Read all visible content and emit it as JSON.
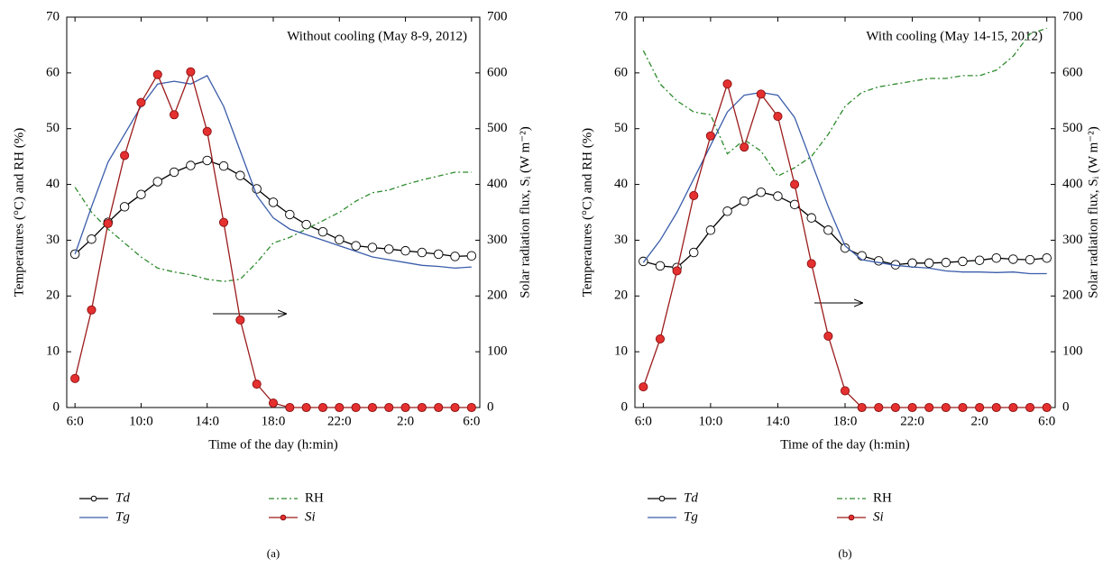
{
  "chart_data": [
    {
      "type": "line",
      "annotation": "Without cooling (May 8-9, 2012)",
      "caption": "(a)",
      "xlabel": "Time of the day (h:min)",
      "ylabel": "Temperatures (°C) and RH (%)",
      "y2label": "Solar radiation flux, Sᵢ (W m⁻²)",
      "xlim": [
        5.5,
        30.5
      ],
      "xticks": [
        {
          "value": 6,
          "label": "6:0"
        },
        {
          "value": 10,
          "label": "10:0"
        },
        {
          "value": 14,
          "label": "14:0"
        },
        {
          "value": 18,
          "label": "18:0"
        },
        {
          "value": 22,
          "label": "22:0"
        },
        {
          "value": 26,
          "label": "2:0"
        },
        {
          "value": 30,
          "label": "6:0"
        }
      ],
      "ylim": [
        0,
        70
      ],
      "yticks": [
        0,
        10,
        20,
        30,
        40,
        50,
        60,
        70
      ],
      "y2lim": [
        0,
        700
      ],
      "y2ticks": [
        0,
        100,
        200,
        300,
        400,
        500,
        600,
        700
      ],
      "x": [
        6,
        7,
        8,
        9,
        10,
        11,
        12,
        13,
        14,
        15,
        16,
        17,
        18,
        19,
        20,
        21,
        22,
        23,
        24,
        25,
        26,
        27,
        28,
        29,
        30
      ],
      "series": [
        {
          "name": "Td",
          "color": "#000000",
          "marker": "open-circle",
          "values": [
            27.5,
            30.2,
            33.2,
            36,
            38.2,
            40.5,
            42.2,
            43.4,
            44.3,
            43.3,
            41.6,
            39.2,
            36.8,
            34.6,
            32.8,
            31.5,
            30.1,
            29,
            28.7,
            28.4,
            28.1,
            27.8,
            27.5,
            27.1,
            27.2
          ]
        },
        {
          "name": "RH",
          "color": "#2e8b2e",
          "linestyle": "dashed",
          "values": [
            39.5,
            35,
            32,
            29.5,
            27,
            25,
            24.3,
            23.8,
            23,
            22.6,
            23,
            26,
            29.5,
            30.5,
            32,
            33.5,
            35,
            37,
            38.5,
            39,
            40,
            40.8,
            41.5,
            42.2,
            42.2
          ]
        },
        {
          "name": "Tg",
          "color": "#3b5daa",
          "values": [
            27.5,
            36,
            44,
            49,
            54,
            58,
            58.5,
            58,
            59.5,
            54,
            46,
            38,
            34,
            32,
            31,
            30,
            29,
            28,
            27,
            26.5,
            26,
            25.5,
            25.3,
            25,
            25.2
          ]
        },
        {
          "name": "Si",
          "color": "#9b1b1b",
          "marker": "filled-circle",
          "axis": "y2",
          "values": [
            52,
            175,
            330,
            452,
            547,
            597,
            525,
            602,
            495,
            332,
            157,
            42,
            8,
            0,
            0,
            0,
            0,
            0,
            0,
            0,
            0,
            0,
            0,
            0,
            0
          ]
        }
      ]
    },
    {
      "type": "line",
      "annotation": "With cooling (May 14-15, 2012)",
      "caption": "(b)",
      "xlabel": "Time of the day (h:min)",
      "ylabel": "Temperatures (°C) and RH (%)",
      "y2label": "Solar radiation flux, Sᵢ (W m⁻²)",
      "xlim": [
        5.5,
        30.5
      ],
      "xticks": [
        {
          "value": 6,
          "label": "6:0"
        },
        {
          "value": 10,
          "label": "10:0"
        },
        {
          "value": 14,
          "label": "14:0"
        },
        {
          "value": 18,
          "label": "18:0"
        },
        {
          "value": 22,
          "label": "22:0"
        },
        {
          "value": 26,
          "label": "2:0"
        },
        {
          "value": 30,
          "label": "6:0"
        }
      ],
      "ylim": [
        0,
        70
      ],
      "yticks": [
        0,
        10,
        20,
        30,
        40,
        50,
        60,
        70
      ],
      "y2lim": [
        0,
        700
      ],
      "y2ticks": [
        0,
        100,
        200,
        300,
        400,
        500,
        600,
        700
      ],
      "x": [
        6,
        7,
        8,
        9,
        10,
        11,
        12,
        13,
        14,
        15,
        16,
        17,
        18,
        19,
        20,
        21,
        22,
        23,
        24,
        25,
        26,
        27,
        28,
        29,
        30
      ],
      "series": [
        {
          "name": "Td",
          "color": "#000000",
          "marker": "open-circle",
          "values": [
            26.2,
            25.4,
            25.1,
            27.8,
            31.8,
            35.2,
            37,
            38.6,
            37.9,
            36.4,
            34,
            31.8,
            28.6,
            27.2,
            26.3,
            25.6,
            25.9,
            25.9,
            26,
            26.2,
            26.4,
            26.8,
            26.6,
            26.5,
            26.8
          ]
        },
        {
          "name": "RH",
          "color": "#2e8b2e",
          "linestyle": "dashed",
          "values": [
            64,
            58,
            55,
            53,
            52.5,
            45.5,
            48,
            46,
            41.5,
            43,
            45,
            49,
            54,
            56.5,
            57.5,
            58,
            58.5,
            59,
            59,
            59.5,
            59.5,
            60.5,
            63,
            67,
            68
          ]
        },
        {
          "name": "Tg",
          "color": "#3b5daa",
          "values": [
            26,
            30,
            35,
            41,
            47,
            53,
            56,
            56.5,
            56,
            52,
            44,
            36,
            29,
            26.5,
            26,
            25.5,
            25.2,
            25,
            24.5,
            24.3,
            24.3,
            24.2,
            24.3,
            24,
            24
          ]
        },
        {
          "name": "Si",
          "color": "#9b1b1b",
          "marker": "filled-circle",
          "axis": "y2",
          "values": [
            37,
            123,
            245,
            380,
            487,
            580,
            467,
            562,
            522,
            400,
            258,
            128,
            30,
            0,
            0,
            0,
            0,
            0,
            0,
            0,
            0,
            0,
            0,
            0,
            0
          ]
        }
      ]
    }
  ]
}
